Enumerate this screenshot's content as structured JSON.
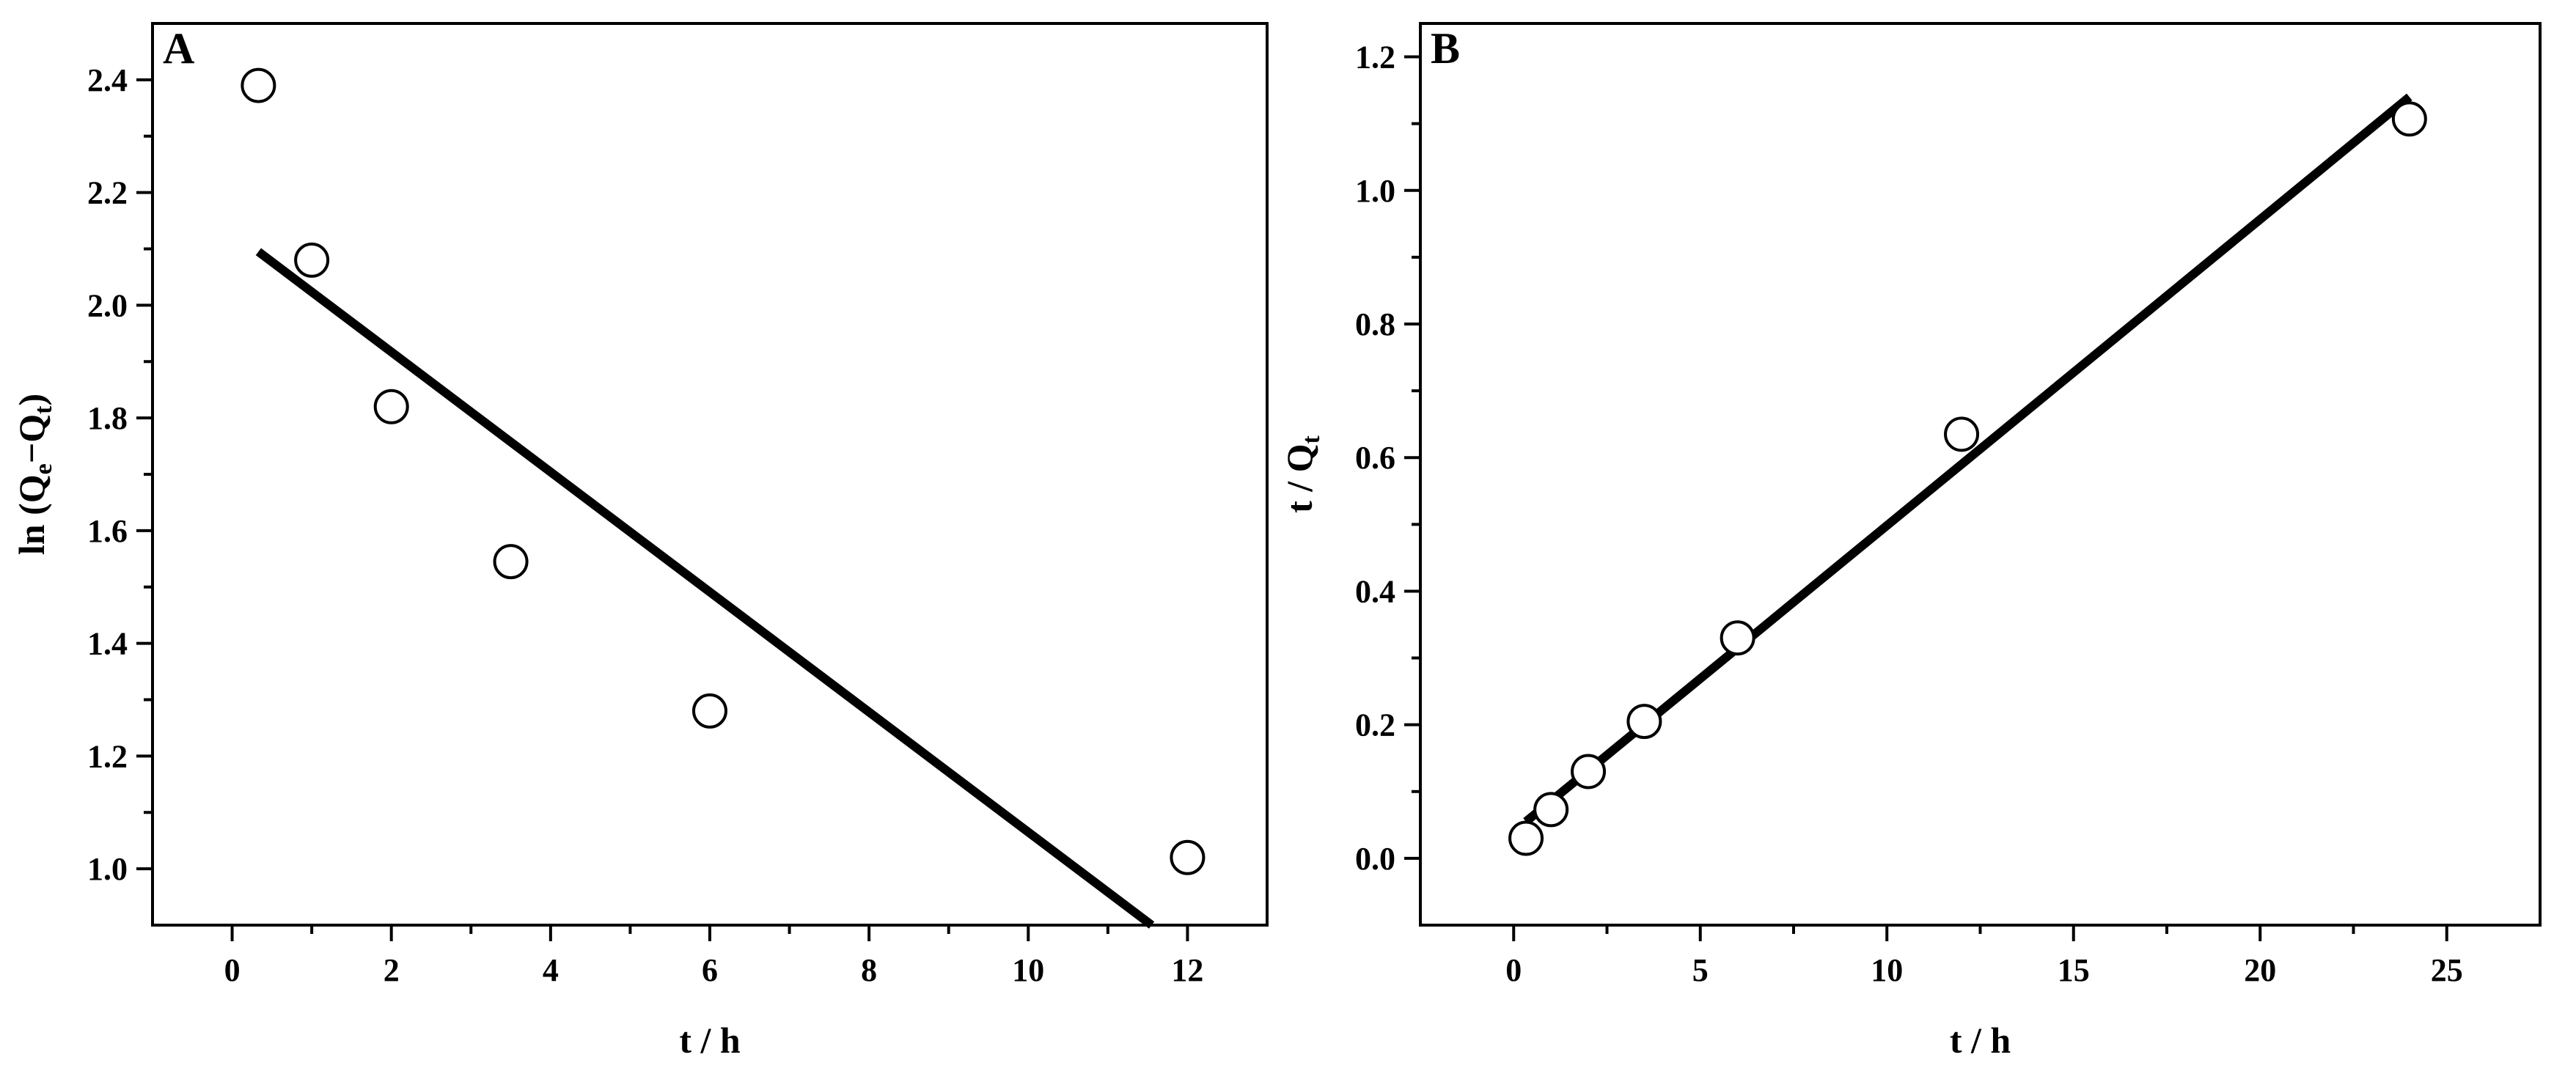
{
  "chart_data": [
    {
      "type": "scatter",
      "panel_label": "A",
      "xlabel": "t / h",
      "ylabel_parts": [
        "ln (Q",
        "e",
        "−Q",
        "t",
        ")"
      ],
      "xlim": [
        -1,
        13
      ],
      "ylim": [
        0.9,
        2.5
      ],
      "x_ticks": [
        0,
        2,
        4,
        6,
        8,
        10,
        12
      ],
      "y_ticks": [
        1.0,
        1.2,
        1.4,
        1.6,
        1.8,
        2.0,
        2.2,
        2.4
      ],
      "x_tick_labels": [
        "0",
        "2",
        "4",
        "6",
        "8",
        "10",
        "12"
      ],
      "y_tick_labels": [
        "1.0",
        "1.2",
        "1.4",
        "1.6",
        "1.8",
        "2.0",
        "2.2",
        "2.4"
      ],
      "x_minor_ticks": [
        1,
        3,
        5,
        7,
        9,
        11
      ],
      "y_minor_ticks": [
        1.1,
        1.3,
        1.5,
        1.7,
        1.9,
        2.1,
        2.3
      ],
      "points": [
        {
          "x": 0.33,
          "y": 2.39
        },
        {
          "x": 1.0,
          "y": 2.08
        },
        {
          "x": 2.0,
          "y": 1.82
        },
        {
          "x": 3.5,
          "y": 1.545
        },
        {
          "x": 6.0,
          "y": 1.28
        },
        {
          "x": 12.0,
          "y": 1.02
        }
      ],
      "fit_line": {
        "x1": 0.33,
        "y1": 2.095,
        "x2": 11.55,
        "y2": 0.9
      },
      "grid": false,
      "legend": "none"
    },
    {
      "type": "scatter",
      "panel_label": "B",
      "xlabel": "t / h",
      "ylabel_parts": [
        "t / Q",
        "t",
        "",
        "",
        ""
      ],
      "xlim": [
        -2.5,
        27.5
      ],
      "ylim": [
        -0.1,
        1.25
      ],
      "x_ticks": [
        0,
        5,
        10,
        15,
        20,
        25
      ],
      "y_ticks": [
        0.0,
        0.2,
        0.4,
        0.6,
        0.8,
        1.0,
        1.2
      ],
      "x_tick_labels": [
        "0",
        "5",
        "10",
        "15",
        "20",
        "25"
      ],
      "y_tick_labels": [
        "0.0",
        "0.2",
        "0.4",
        "0.6",
        "0.8",
        "1.0",
        "1.2"
      ],
      "x_minor_ticks": [
        2.5,
        7.5,
        12.5,
        17.5,
        22.5
      ],
      "y_minor_ticks": [
        0.1,
        0.3,
        0.5,
        0.7,
        0.9,
        1.1
      ],
      "points": [
        {
          "x": 0.33,
          "y": 0.03
        },
        {
          "x": 1.0,
          "y": 0.073
        },
        {
          "x": 2.0,
          "y": 0.13
        },
        {
          "x": 3.5,
          "y": 0.205
        },
        {
          "x": 6.0,
          "y": 0.33
        },
        {
          "x": 12.0,
          "y": 0.635
        },
        {
          "x": 24.0,
          "y": 1.107
        }
      ],
      "fit_line": {
        "x1": 0.33,
        "y1": 0.055,
        "x2": 24.0,
        "y2": 1.14
      },
      "grid": false,
      "legend": "none"
    }
  ]
}
